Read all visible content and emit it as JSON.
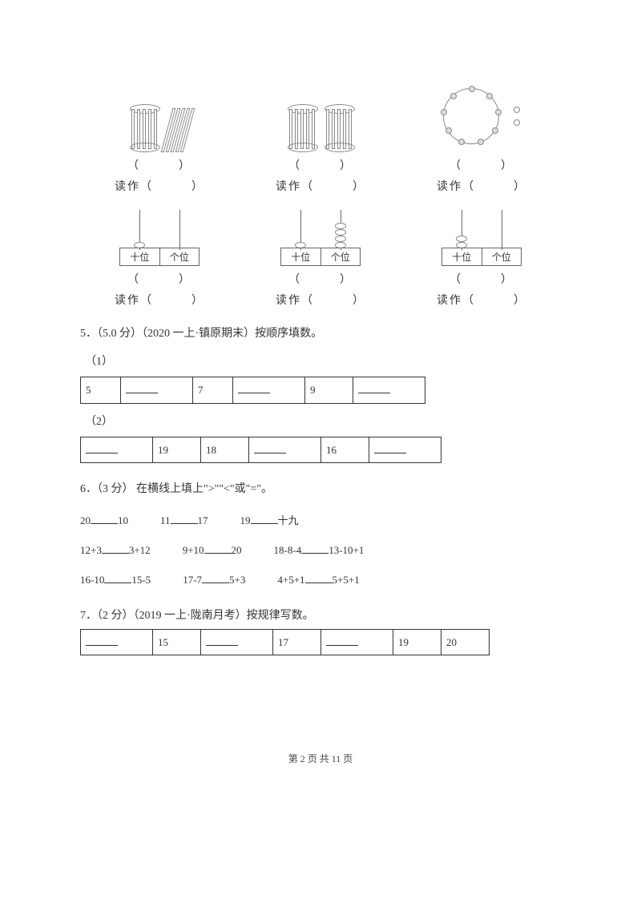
{
  "images_row": {
    "paren": "（　　　）",
    "read_as": "读作（　　　）"
  },
  "abacus": {
    "tens": "十位",
    "ones": "个位",
    "paren": "（　　　）",
    "read_as": "读作（　　　）"
  },
  "q5": {
    "label": "5．（5.0 分）（2020 一上·镇原期末）按顺序填数。",
    "sub1": "（1）",
    "sub2": "（2）",
    "row1": [
      "5",
      "",
      "7",
      "",
      "9",
      ""
    ],
    "row1_widths": [
      50,
      90,
      50,
      90,
      60,
      90
    ],
    "row2": [
      "",
      "19",
      "18",
      "",
      "16",
      ""
    ],
    "row2_widths": [
      90,
      60,
      60,
      90,
      60,
      90
    ]
  },
  "q6": {
    "label": "6．（3 分） 在横线上填上\">\"\"<\"或\"=\"。",
    "rows": [
      [
        {
          "l": "20",
          "r": "10"
        },
        {
          "l": "11",
          "r": "17"
        },
        {
          "l": "19",
          "r": "十九"
        }
      ],
      [
        {
          "l": "12+3",
          "r": "3+12"
        },
        {
          "l": "9+10",
          "r": "20"
        },
        {
          "l": "18-8-4",
          "r": "13-10+1"
        }
      ],
      [
        {
          "l": "16-10",
          "r": "15-5"
        },
        {
          "l": "17-7",
          "r": "5+3"
        },
        {
          "l": "4+5+1",
          "r": "5+5+1"
        }
      ]
    ]
  },
  "q7": {
    "label": "7．（2 分）（2019 一上·陇南月考）按规律写数。",
    "row": [
      "",
      "15",
      "",
      "17",
      "",
      "19",
      "20"
    ],
    "widths": [
      90,
      60,
      90,
      60,
      90,
      60,
      60
    ]
  },
  "footer": "第 2 页 共 11 页"
}
